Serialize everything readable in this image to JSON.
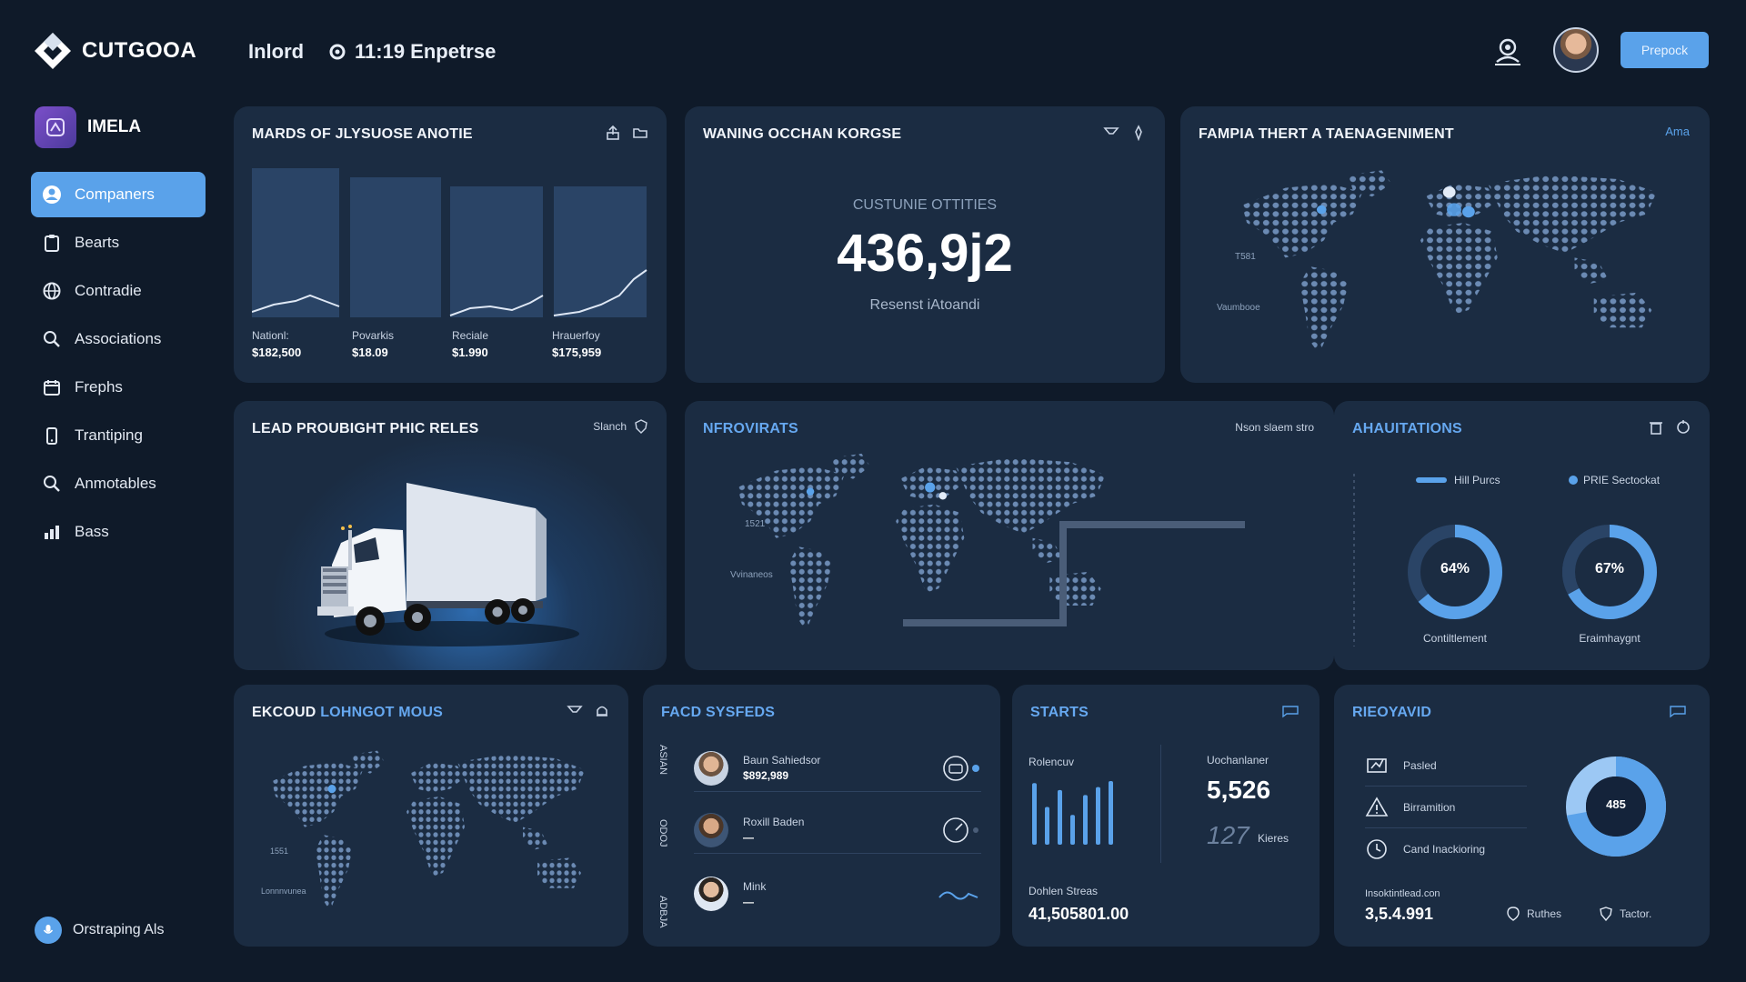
{
  "header": {
    "brand": "CUTGOOA",
    "nav_text": "Inlord",
    "sub_text": "11:19 Enpetrse",
    "action_label": "Prepock"
  },
  "sidebar": {
    "workspace": "IMELA",
    "items": [
      {
        "label": "Companers",
        "icon": "user-circle-icon"
      },
      {
        "label": "Bearts",
        "icon": "clipboard-icon"
      },
      {
        "label": "Contradie",
        "icon": "globe-icon"
      },
      {
        "label": "Associations",
        "icon": "search-icon"
      },
      {
        "label": "Frephs",
        "icon": "calendar-icon"
      },
      {
        "label": "Trantiping",
        "icon": "phone-icon"
      },
      {
        "label": "Anmotables",
        "icon": "search-icon"
      },
      {
        "label": "Bass",
        "icon": "chart-icon"
      }
    ],
    "assistant_label": "Orstraping Als"
  },
  "cards": {
    "metrics": {
      "title": "MARDS OF JLYSUOSE ANOTIE",
      "items": [
        {
          "label": "Nationl:",
          "value": "$182,500"
        },
        {
          "label": "Povarkis",
          "value": "$18.09"
        },
        {
          "label": "Reciale",
          "value": "$1.990"
        },
        {
          "label": "Hrauerfoy",
          "value": "$175,959"
        }
      ]
    },
    "counter": {
      "title": "WANING OCCHAN KORGSE",
      "caption": "CUSTUNIE OTTITIES",
      "value": "436,9j2",
      "subcaption": "Resenst iAtoandi"
    },
    "map_top": {
      "title": "FAMPIA THERT A TAENAGENIMENT",
      "link": "Ama",
      "axis_a": "T581",
      "axis_b": "Vaumbooe"
    },
    "truck": {
      "title": "LEAD PROUBIGHT PHIC RELES",
      "action": "Slanch"
    },
    "map_mid": {
      "title": "NFROVIRATS",
      "note": "Nson slaem stro",
      "axis_a": "1521",
      "axis_b": "Vvinaneos"
    },
    "gauges": {
      "title": "AHAUITATIONS",
      "legend_a": "Hill Purcs",
      "legend_b": "PRIE Sectockat",
      "g1": {
        "value": 64,
        "text": "64%",
        "label": "Contiltlement"
      },
      "g2": {
        "value": 67,
        "text": "67%",
        "label": "Eraimhaygnt"
      }
    },
    "map_bottom": {
      "title_a": "EKCOUD",
      "title_b": "LOHNGOT MOUS",
      "axis_a": "1551",
      "axis_b": "Lonnnvunea"
    },
    "people": {
      "title": "FACD SYSFEDS",
      "side_a": "ASIAN",
      "side_b": "ODOJ",
      "side_c": "ADBJA",
      "rows": [
        {
          "name": "Baun Sahiedsor",
          "value": "$892,989"
        },
        {
          "name": "Roxill Baden",
          "value": "—"
        },
        {
          "name": "Mink",
          "value": "—"
        }
      ]
    },
    "starts": {
      "title": "STARTS",
      "left_label": "Rolencuv",
      "right_label": "Uochanlaner",
      "big_value": "5,526",
      "small_value": "127",
      "small_label": "Kieres",
      "bottom_label": "Dohlen Streas",
      "bottom_value": "41,505801.00",
      "bars": [
        62,
        38,
        55,
        30,
        50,
        58,
        64
      ]
    },
    "donut": {
      "title": "RIEOYAVID",
      "items": [
        {
          "label": "Pasled",
          "icon": "signature-icon"
        },
        {
          "label": "Birramition",
          "icon": "warning-icon"
        },
        {
          "label": "Cand Inackioring",
          "icon": "clock-icon"
        }
      ],
      "center": "485",
      "percent": 72,
      "footer_label": "Insoktintlead.con",
      "footer_value": "3,5.4.991",
      "link_a": "Ruthes",
      "link_b": "Tactor."
    }
  },
  "colors": {
    "accent": "#5aa2ea",
    "card": "#1b2c42",
    "bg": "#0f1a29",
    "land": "#56739a"
  }
}
